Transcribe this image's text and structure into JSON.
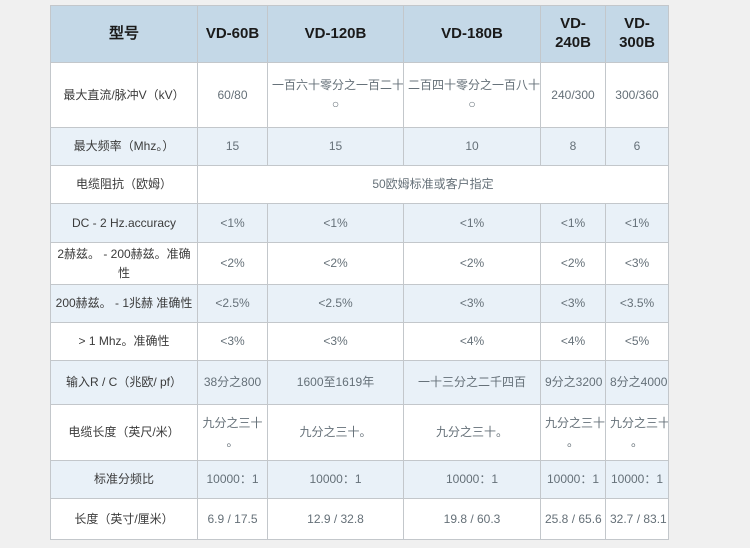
{
  "page": {
    "background": "#f0f0f0"
  },
  "colors": {
    "header_bg": "#c4d8e7",
    "alt_row_bg": "#e9f1f8",
    "row_bg": "#ffffff",
    "border": "#c3c7cb",
    "header_text": "#1a1a1a",
    "label_text": "#3b3b3b",
    "value_text": "#657078"
  },
  "table": {
    "columns": [
      "型号",
      "VD-60B",
      "VD-120B",
      "VD-180B",
      "VD-240B",
      "VD-300B"
    ],
    "rows": [
      {
        "label": "最大直流/脉冲V（kV）",
        "values": [
          "60/80",
          "一百六十零分之一百二十\n○",
          "二百四十零分之一百八十\n○",
          "240/300",
          "300/360"
        ]
      },
      {
        "label": "最大频率（Mhz。）",
        "values": [
          "15",
          "15",
          "10",
          "8",
          "6"
        ]
      },
      {
        "label": "电缆阻抗（欧姆）",
        "merged_value": "50欧姆标准或客户指定"
      },
      {
        "label": "DC - 2 Hz.accuracy",
        "values": [
          "<1%",
          "<1%",
          "<1%",
          "<1%",
          "<1%"
        ]
      },
      {
        "label": "2赫兹。 - 200赫兹。准确性",
        "values": [
          "<2%",
          "<2%",
          "<2%",
          "<2%",
          "<3%"
        ]
      },
      {
        "label": "200赫兹。 - 1兆赫 准确性",
        "values": [
          "<2.5%",
          "<2.5%",
          "<3%",
          "<3%",
          "<3.5%"
        ]
      },
      {
        "label": "> 1 Mhz。准确性",
        "values": [
          "<3%",
          "<3%",
          "<4%",
          "<4%",
          "<5%"
        ]
      },
      {
        "label": "输入R / C（兆欧/ pf）",
        "values": [
          "38分之800",
          "1600至1619年",
          "一十三分之二千四百",
          "9分之3200",
          "8分之4000"
        ]
      },
      {
        "label": "电缆长度（英尺/米）",
        "values": [
          "九分之三十\n。",
          "九分之三十。",
          "九分之三十。",
          "九分之三十\n。",
          "九分之三十\n。"
        ]
      },
      {
        "label": "标准分频比",
        "values": [
          "10000：1",
          "10000：1",
          "10000：1",
          "10000：1",
          "10000：1"
        ]
      },
      {
        "label": "长度（英寸/厘米）",
        "values": [
          "6.9 / 17.5",
          "12.9 / 32.8",
          "19.8 / 60.3",
          "25.8 / 65.6",
          "32.7 / 83.1"
        ]
      }
    ]
  }
}
